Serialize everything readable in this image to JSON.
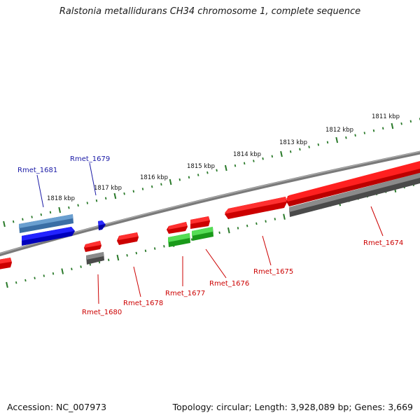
{
  "title": "Ralstonia metallidurans CH34 chromosome 1, complete sequence",
  "footer": {
    "accession": "Accession: NC_007973",
    "summary": "Topology: circular; Length: 3,928,089 bp; Genes: 3,669"
  },
  "ruler_labels": [
    "1811 kbp",
    "1812 kbp",
    "1813 kbp",
    "1814 kbp",
    "1815 kbp",
    "1816 kbp",
    "1817 kbp",
    "1818 kbp"
  ],
  "gene_labels": [
    {
      "text": "Rmet_1681",
      "color": "#1a1aa6"
    },
    {
      "text": "Rmet_1679",
      "color": "#1a1aa6"
    },
    {
      "text": "Rmet_1680",
      "color": "#cc0000"
    },
    {
      "text": "Rmet_1678",
      "color": "#cc0000"
    },
    {
      "text": "Rmet_1677",
      "color": "#cc0000"
    },
    {
      "text": "Rmet_1676",
      "color": "#cc0000"
    },
    {
      "text": "Rmet_1675",
      "color": "#cc0000"
    },
    {
      "text": "Rmet_1674",
      "color": "#cc0000"
    }
  ],
  "colors": {
    "backbone": "#808080",
    "ruler_tick": "#2a7a2a",
    "forward_cds": "#ee0000",
    "reverse_cds": "#0000ee",
    "rna_or_other": "#22bb22",
    "cog_gray": "#606060",
    "cog_steelblue": "#4a7fb5"
  }
}
